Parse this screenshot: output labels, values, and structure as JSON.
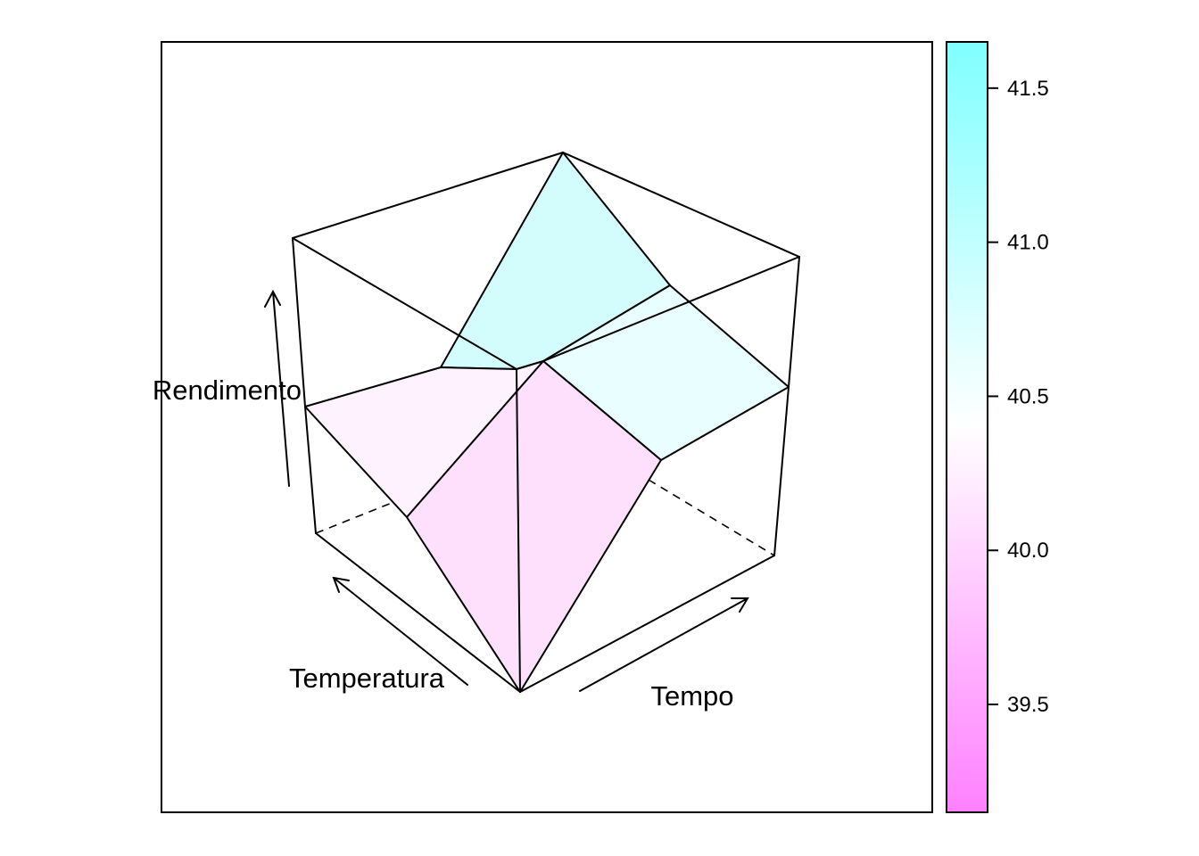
{
  "chart_data": {
    "type": "wireframe3d",
    "xlabel": "Temperatura",
    "ylabel": "Tempo",
    "zlabel": "Rendimento",
    "surface": {
      "rows": [
        [
          40.4,
          40.8,
          40.9
        ],
        [
          40.1,
          40.1,
          41.1
        ],
        [
          40.3,
          40.2,
          40.7
        ]
      ]
    },
    "colorkey": {
      "min": 39.15,
      "max": 41.65,
      "low_color": "#ff80ff",
      "mid_color": "#ffffff",
      "high_color": "#80ffff",
      "ticks": [
        39.5,
        40.0,
        40.5,
        41.0,
        41.5
      ],
      "tick_labels": [
        "39.5",
        "40.0",
        "40.5",
        "41.0",
        "41.5"
      ]
    },
    "facet_colors": [
      "#fdf2fd",
      "#fee0fd",
      "#d3fdfd",
      "#e9fefe"
    ],
    "grid": false
  }
}
